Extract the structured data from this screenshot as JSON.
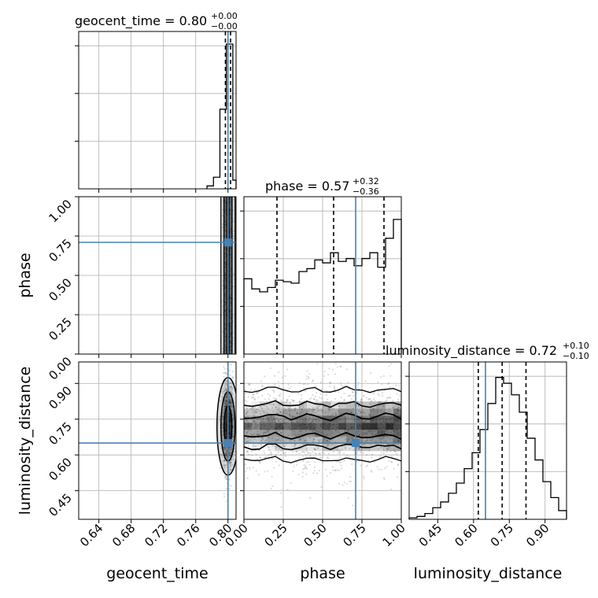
{
  "titles": {
    "geocent_time": {
      "main": "geocent_time = 0.80",
      "sup": "+0.00",
      "sub": "−0.00"
    },
    "phase": {
      "main": "phase = 0.57",
      "sup": "+0.32",
      "sub": "−0.36"
    },
    "luminosity_distance": {
      "main": "luminosity_distance = 0.72",
      "sup": "+0.10",
      "sub": "−0.10"
    }
  },
  "axis_labels": {
    "x": [
      "geocent_time",
      "phase",
      "luminosity_distance"
    ],
    "y": [
      "phase",
      "luminosity_distance"
    ]
  },
  "colors": {
    "truth": "#4682b4",
    "hist": "#000000",
    "grid": "#b0b0b0",
    "scatter": "#000000"
  },
  "chart_data": {
    "type": "corner",
    "parameters": [
      "geocent_time",
      "phase",
      "luminosity_distance"
    ],
    "truth": {
      "geocent_time": 0.8,
      "phase": 0.71,
      "luminosity_distance": 0.65
    },
    "ranges": {
      "geocent_time": [
        0.615,
        0.81
      ],
      "phase": [
        0.0,
        1.0
      ],
      "luminosity_distance": [
        0.33,
        0.99
      ]
    },
    "ticks": {
      "geocent_time": {
        "values": [
          0.64,
          0.68,
          0.72,
          0.76,
          0.8
        ],
        "labels": [
          "0.64",
          "0.68",
          "0.72",
          "0.76",
          "0.80"
        ]
      },
      "phase_x": {
        "values": [
          0.0,
          0.25,
          0.5,
          0.75,
          1.0
        ],
        "labels": [
          "0.00",
          "0.25",
          "0.50",
          "0.75",
          "1.00"
        ]
      },
      "phase_y": {
        "values": [
          0.0,
          0.25,
          0.5,
          0.75,
          1.0
        ],
        "labels": [
          "0.00",
          "0.25",
          "0.50",
          "0.75",
          "1.00"
        ]
      },
      "luminosity_distance": {
        "values": [
          0.45,
          0.6,
          0.75,
          0.9
        ],
        "labels": [
          "0.45",
          "0.60",
          "0.75",
          "0.90"
        ]
      }
    },
    "marginals": {
      "geocent_time": {
        "quantiles": [
          0.7968,
          0.8,
          0.8032
        ],
        "bin_edges": [
          0.774,
          0.782,
          0.79,
          0.798,
          0.806,
          0.814
        ],
        "counts": [
          0.02,
          0.08,
          0.55,
          1.0,
          0.06
        ]
      },
      "phase": {
        "quantiles": [
          0.21,
          0.57,
          0.89
        ],
        "bin_edges": [
          0.0,
          0.05,
          0.1,
          0.15,
          0.2,
          0.25,
          0.3,
          0.35,
          0.4,
          0.45,
          0.5,
          0.55,
          0.6,
          0.65,
          0.7,
          0.75,
          0.8,
          0.85,
          0.9,
          0.95,
          1.0
        ],
        "counts": [
          0.52,
          0.45,
          0.43,
          0.46,
          0.51,
          0.5,
          0.49,
          0.57,
          0.59,
          0.65,
          0.63,
          0.7,
          0.64,
          0.66,
          0.61,
          0.66,
          0.7,
          0.6,
          0.8,
          0.93
        ]
      },
      "luminosity_distance": {
        "quantiles": [
          0.62,
          0.72,
          0.82
        ],
        "bin_edges": [
          0.33,
          0.363,
          0.396,
          0.429,
          0.462,
          0.495,
          0.528,
          0.561,
          0.594,
          0.627,
          0.66,
          0.693,
          0.726,
          0.759,
          0.792,
          0.825,
          0.858,
          0.891,
          0.924,
          0.957,
          0.99
        ],
        "counts": [
          0.01,
          0.02,
          0.04,
          0.08,
          0.12,
          0.18,
          0.25,
          0.35,
          0.46,
          0.62,
          0.8,
          0.98,
          0.94,
          0.86,
          0.74,
          0.56,
          0.41,
          0.26,
          0.15,
          0.06
        ]
      }
    },
    "joint": {
      "phase_vs_geocent_time": {
        "center_x": 0.8,
        "spread_x": 0.003,
        "contour_levels": 3
      },
      "luminosity_distance_vs_geocent_time": {
        "center_x": 0.8,
        "center_y": 0.72,
        "spread_x": 0.004,
        "spread_y": 0.1,
        "contour_levels": 3
      },
      "luminosity_distance_vs_phase": {
        "center_y": 0.72,
        "spread_y": 0.1,
        "contour_levels": 3
      }
    }
  }
}
